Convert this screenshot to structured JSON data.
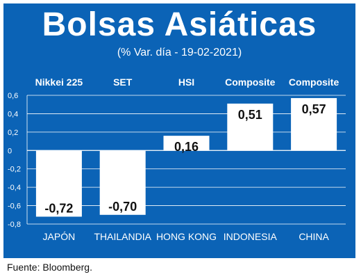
{
  "header": {
    "title": "Bolsas Asiáticas",
    "subtitle": "(% Var. día - 19-02-2021)"
  },
  "footer": {
    "source": "Fuente: Bloomberg."
  },
  "colors": {
    "panel": "#0b63b6",
    "bar": "#ffffff",
    "grid": "#ffffff",
    "text": "#ffffff"
  },
  "chart_data": {
    "type": "bar",
    "categories": [
      "JAPÓN",
      "THAILANDIA",
      "HONG KONG",
      "INDONESIA",
      "CHINA"
    ],
    "index_labels": [
      "Nikkei 225",
      "SET",
      "HSI",
      "Composite",
      "Composite"
    ],
    "values": [
      -0.72,
      -0.7,
      0.16,
      0.51,
      0.57
    ],
    "value_labels": [
      "-0,72",
      "-0,70",
      "0,16",
      "0,51",
      "0,57"
    ],
    "title": "",
    "xlabel": "",
    "ylabel": "",
    "ylim": [
      -0.8,
      0.6
    ],
    "yticks": [
      0.6,
      0.4,
      0.2,
      0,
      -0.2,
      -0.4,
      -0.6,
      -0.8
    ],
    "ytick_labels": [
      "0,6",
      "0,4",
      "0,2",
      "0",
      "-0,2",
      "-0,4",
      "-0,6",
      "-0,8"
    ],
    "grid": true,
    "legend": "none"
  }
}
